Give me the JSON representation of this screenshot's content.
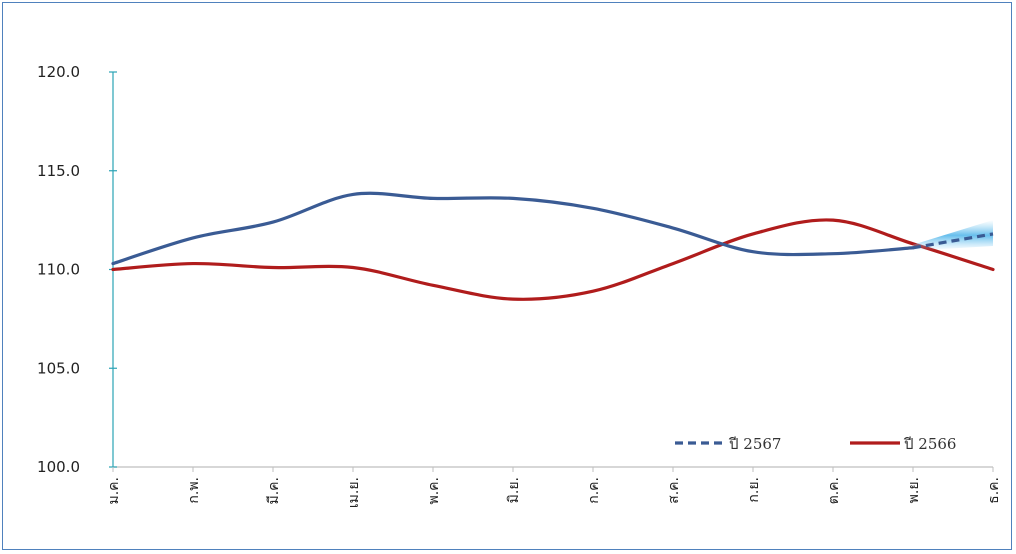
{
  "chart_data": {
    "type": "line",
    "categories": [
      "ม.ค.",
      "ก.พ.",
      "มี.ค.",
      "เม.ย.",
      "พ.ค.",
      "มิ.ย.",
      "ก.ค.",
      "ส.ค.",
      "ก.ย.",
      "ต.ค.",
      "พ.ย.",
      "ธ.ค."
    ],
    "ylim": [
      100.0,
      120.0
    ],
    "yticks": [
      "100.0",
      "105.0",
      "110.0",
      "115.0",
      "120.0"
    ],
    "grid": false,
    "legend_position": "bottom-right",
    "series": [
      {
        "name": "ปี 2567",
        "color": "#3a5b94",
        "style": "solid-then-dashed",
        "values": [
          110.3,
          111.6,
          112.4,
          113.8,
          113.6,
          113.6,
          113.1,
          112.1,
          110.9,
          110.8,
          111.1,
          111.8
        ]
      },
      {
        "name": "ปี 2566",
        "color": "#b01c1c",
        "style": "solid",
        "values": [
          110.0,
          110.3,
          110.1,
          110.1,
          109.2,
          108.5,
          108.9,
          110.3,
          111.8,
          112.5,
          111.3,
          110.0
        ]
      }
    ]
  }
}
